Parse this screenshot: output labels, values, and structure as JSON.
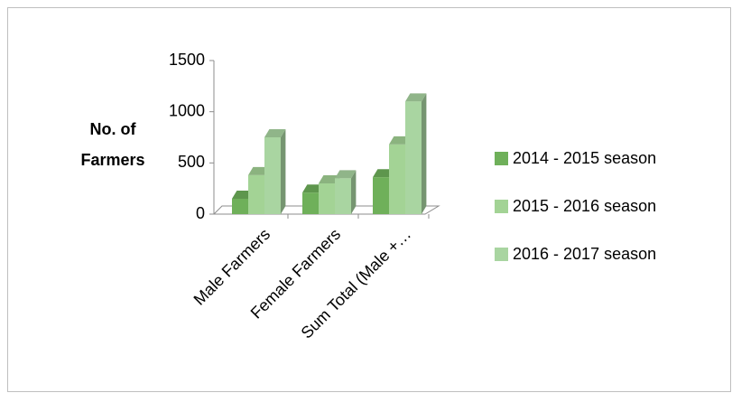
{
  "chart_data": {
    "type": "bar3d",
    "y_label": "No. of Farmers",
    "categories": [
      "Male Farmers",
      "Female Farmers",
      "Sum Total (Male +…"
    ],
    "series": [
      {
        "name": "2014 - 2015 season",
        "color": "#6fb05a",
        "values": [
          150,
          210,
          360
        ]
      },
      {
        "name": "2015 - 2016 season",
        "color": "#a3d395",
        "values": [
          380,
          300,
          680
        ]
      },
      {
        "name": "2016 - 2017 season",
        "color": "#a9d5a1",
        "values": [
          750,
          350,
          1100
        ]
      }
    ],
    "ylim": [
      0,
      1500
    ],
    "yticks": [
      0,
      500,
      1000,
      1500
    ],
    "legend": "right"
  }
}
